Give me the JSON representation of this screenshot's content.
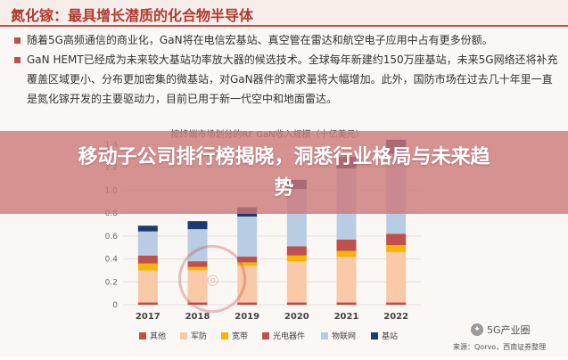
{
  "slide": {
    "title": "氮化镓：最具增长潜质的化合物半导体",
    "bullets": [
      "随着5G高频通信的商业化，GaN将在电信宏基站、真空管在雷达和航空电子应用中占有更多份额。",
      "GaN HEMT已经成为未来较大基站功率放大器的候选技术。全球每年新建约150万座基站，未来5G网络还将补充覆盖区域更小、分布更加密集的微基站，对GaN器件的需求量将大幅增加。此外，国防市场在过去几十年里一直是氮化镓开发的主要驱动力，目前已用于新一代空中和地面雷达。"
    ]
  },
  "chart_data": {
    "type": "bar",
    "stacked": true,
    "title": "按终端市场划分的RF GaN收入规模（十亿美元）",
    "categories": [
      "2017",
      "2018",
      "2019",
      "2020",
      "2021",
      "2022"
    ],
    "ylim": [
      0,
      1.4
    ],
    "yticks": [
      0,
      0.2,
      0.4,
      0.6,
      0.8,
      1.0,
      1.2,
      1.4
    ],
    "ytick_labels": [
      "0",
      "0.2",
      "0.4",
      "0.6",
      "0.8",
      "1.0",
      "1.2",
      "1.4"
    ],
    "grid": true,
    "legend_position": "bottom",
    "series": [
      {
        "name": "其他",
        "color": "#c0504d",
        "values": [
          0.02,
          0.02,
          0.02,
          0.02,
          0.02,
          0.02
        ]
      },
      {
        "name": "军防",
        "color": "#f9c9a8",
        "values": [
          0.28,
          0.28,
          0.32,
          0.36,
          0.4,
          0.44
        ]
      },
      {
        "name": "宽带",
        "color": "#f7b500",
        "values": [
          0.06,
          0.03,
          0.03,
          0.05,
          0.05,
          0.06
        ]
      },
      {
        "name": "光电器件",
        "color": "#c0504d",
        "values": [
          0.07,
          0.05,
          0.05,
          0.08,
          0.1,
          0.1
        ]
      },
      {
        "name": "物联网",
        "color": "#b8cce4",
        "values": [
          0.21,
          0.28,
          0.35,
          0.5,
          0.62,
          0.7
        ]
      },
      {
        "name": "基站",
        "color": "#1f3a6e",
        "values": [
          0.05,
          0.07,
          0.08,
          0.08,
          0.1,
          0.12
        ]
      }
    ]
  },
  "overlay": {
    "headline": "移动子公司排行榜揭晓，洞悉行业格局与未来趋势"
  },
  "watermark": {
    "account": "5G产业圈",
    "source": "来源：Qorvo，西南证券整理"
  },
  "colors": {
    "accent": "#c0504d",
    "overlay": "#cd7878"
  }
}
